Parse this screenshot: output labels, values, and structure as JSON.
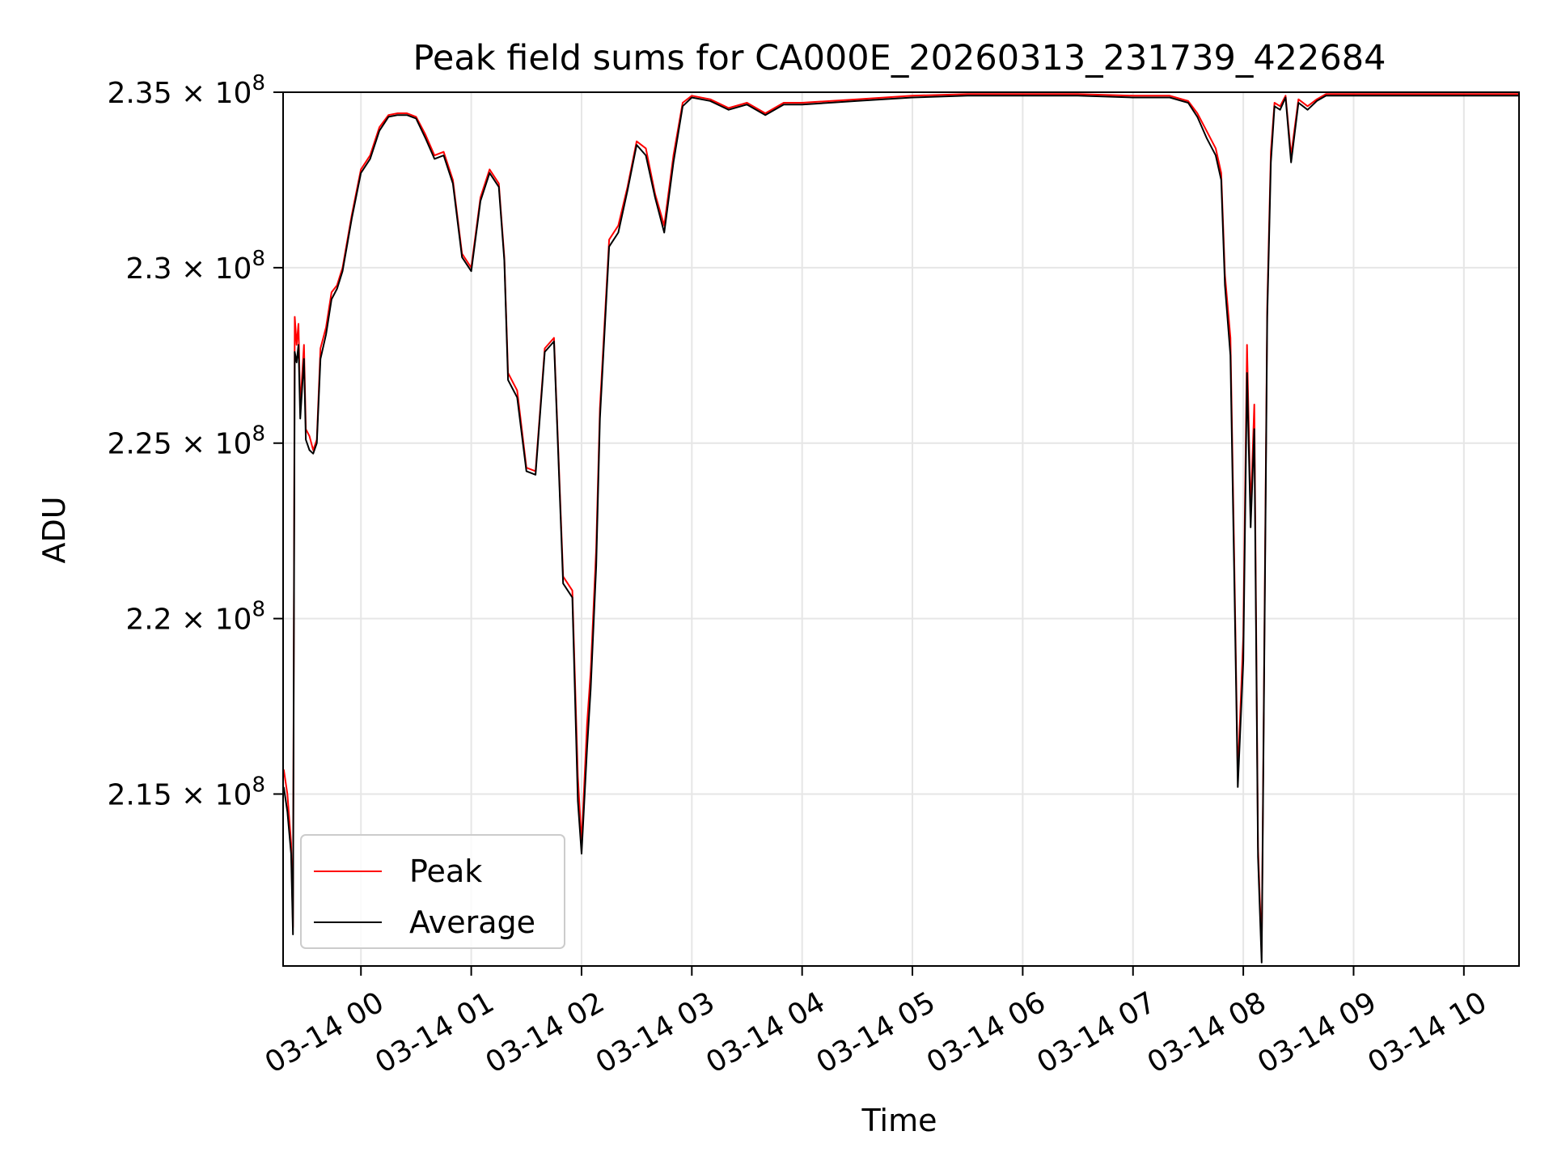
{
  "chart_data": {
    "type": "line",
    "title": "Peak field sums for CA000E_20260313_231739_422684",
    "xlabel": "Time",
    "ylabel": "ADU",
    "x_tick_labels": [
      "03-14 00",
      "03-14 01",
      "03-14 02",
      "03-14 03",
      "03-14 04",
      "03-14 05",
      "03-14 06",
      "03-14 07",
      "03-14 08",
      "03-14 09",
      "03-14 10"
    ],
    "y_tick_labels": [
      {
        "value": 215000000,
        "mantissa": "2.15",
        "exp": "8"
      },
      {
        "value": 220000000,
        "mantissa": "2.2",
        "exp": "8"
      },
      {
        "value": 225000000,
        "mantissa": "2.25",
        "exp": "8"
      },
      {
        "value": 230000000,
        "mantissa": "2.3",
        "exp": "8"
      },
      {
        "value": 235000000,
        "mantissa": "2.35",
        "exp": "8"
      }
    ],
    "xlim": [
      "03-13 23:17:39",
      "03-14 10:30"
    ],
    "ylim": [
      210100000,
      235000000
    ],
    "grid": true,
    "legend_position": "lower-left",
    "series": [
      {
        "name": "Peak",
        "color": "#ff0000",
        "x": [
          "03-13 23:18",
          "03-13 23:20",
          "03-13 23:22",
          "03-13 23:23",
          "03-13 23:24",
          "03-13 23:25",
          "03-13 23:26",
          "03-13 23:27",
          "03-13 23:29",
          "03-13 23:30",
          "03-13 23:32",
          "03-13 23:34",
          "03-13 23:36",
          "03-13 23:38",
          "03-13 23:41",
          "03-13 23:44",
          "03-13 23:47",
          "03-13 23:50",
          "03-13 23:55",
          "03-14 00:00",
          "03-14 00:05",
          "03-14 00:10",
          "03-14 00:15",
          "03-14 00:20",
          "03-14 00:25",
          "03-14 00:30",
          "03-14 00:35",
          "03-14 00:40",
          "03-14 00:45",
          "03-14 00:50",
          "03-14 00:55",
          "03-14 01:00",
          "03-14 01:05",
          "03-14 01:10",
          "03-14 01:15",
          "03-14 01:18",
          "03-14 01:20",
          "03-14 01:25",
          "03-14 01:30",
          "03-14 01:35",
          "03-14 01:40",
          "03-14 01:45",
          "03-14 01:50",
          "03-14 01:55",
          "03-14 01:58",
          "03-14 02:00",
          "03-14 02:03",
          "03-14 02:05",
          "03-14 02:08",
          "03-14 02:10",
          "03-14 02:15",
          "03-14 02:20",
          "03-14 02:25",
          "03-14 02:30",
          "03-14 02:35",
          "03-14 02:40",
          "03-14 02:45",
          "03-14 02:50",
          "03-14 02:55",
          "03-14 03:00",
          "03-14 03:10",
          "03-14 03:20",
          "03-14 03:30",
          "03-14 03:40",
          "03-14 03:50",
          "03-14 04:00",
          "03-14 04:30",
          "03-14 05:00",
          "03-14 05:30",
          "03-14 06:00",
          "03-14 06:30",
          "03-14 07:00",
          "03-14 07:20",
          "03-14 07:30",
          "03-14 07:35",
          "03-14 07:40",
          "03-14 07:45",
          "03-14 07:48",
          "03-14 07:50",
          "03-14 07:53",
          "03-14 07:55",
          "03-14 07:57",
          "03-14 08:00",
          "03-14 08:02",
          "03-14 08:04",
          "03-14 08:06",
          "03-14 08:08",
          "03-14 08:10",
          "03-14 08:12",
          "03-14 08:13",
          "03-14 08:15",
          "03-14 08:17",
          "03-14 08:20",
          "03-14 08:23",
          "03-14 08:26",
          "03-14 08:30",
          "03-14 08:35",
          "03-14 08:40",
          "03-14 08:45",
          "03-14 09:00",
          "03-14 09:30",
          "03-14 10:00",
          "03-14 10:30"
        ],
        "values": [
          215700000,
          215000000,
          213600000,
          211200000,
          228600000,
          227800000,
          228400000,
          226000000,
          227800000,
          225400000,
          225200000,
          224800000,
          225100000,
          227700000,
          228300000,
          229300000,
          229500000,
          230000000,
          231500000,
          232800000,
          233200000,
          234000000,
          234350000,
          234400000,
          234400000,
          234300000,
          233800000,
          233200000,
          233300000,
          232500000,
          230400000,
          230000000,
          232000000,
          232800000,
          232400000,
          230300000,
          227000000,
          226500000,
          224300000,
          224200000,
          227700000,
          228000000,
          221200000,
          220800000,
          215500000,
          213600000,
          217000000,
          218500000,
          222000000,
          226000000,
          230800000,
          231200000,
          232300000,
          233600000,
          233400000,
          232100000,
          231200000,
          233200000,
          234700000,
          234900000,
          234800000,
          234550000,
          234700000,
          234400000,
          234700000,
          234700000,
          234800000,
          234900000,
          234950000,
          234950000,
          234950000,
          234900000,
          234900000,
          234750000,
          234400000,
          233900000,
          233400000,
          232700000,
          229800000,
          228000000,
          222000000,
          215500000,
          219500000,
          227800000,
          223000000,
          226100000,
          213500000,
          210500000,
          222800000,
          228900000,
          233300000,
          234700000,
          234600000,
          234900000,
          233200000,
          234800000,
          234600000,
          234800000,
          234950000,
          234950000,
          234950000,
          234950000,
          234950000
        ]
      },
      {
        "name": "Average",
        "color": "#000000",
        "x": [
          "03-13 23:18",
          "03-13 23:20",
          "03-13 23:22",
          "03-13 23:23",
          "03-13 23:24",
          "03-13 23:25",
          "03-13 23:26",
          "03-13 23:27",
          "03-13 23:29",
          "03-13 23:30",
          "03-13 23:32",
          "03-13 23:34",
          "03-13 23:36",
          "03-13 23:38",
          "03-13 23:41",
          "03-13 23:44",
          "03-13 23:47",
          "03-13 23:50",
          "03-13 23:55",
          "03-14 00:00",
          "03-14 00:05",
          "03-14 00:10",
          "03-14 00:15",
          "03-14 00:20",
          "03-14 00:25",
          "03-14 00:30",
          "03-14 00:35",
          "03-14 00:40",
          "03-14 00:45",
          "03-14 00:50",
          "03-14 00:55",
          "03-14 01:00",
          "03-14 01:05",
          "03-14 01:10",
          "03-14 01:15",
          "03-14 01:18",
          "03-14 01:20",
          "03-14 01:25",
          "03-14 01:30",
          "03-14 01:35",
          "03-14 01:40",
          "03-14 01:45",
          "03-14 01:50",
          "03-14 01:55",
          "03-14 01:58",
          "03-14 02:00",
          "03-14 02:03",
          "03-14 02:05",
          "03-14 02:08",
          "03-14 02:10",
          "03-14 02:15",
          "03-14 02:20",
          "03-14 02:25",
          "03-14 02:30",
          "03-14 02:35",
          "03-14 02:40",
          "03-14 02:45",
          "03-14 02:50",
          "03-14 02:55",
          "03-14 03:00",
          "03-14 03:10",
          "03-14 03:20",
          "03-14 03:30",
          "03-14 03:40",
          "03-14 03:50",
          "03-14 04:00",
          "03-14 04:30",
          "03-14 05:00",
          "03-14 05:30",
          "03-14 06:00",
          "03-14 06:30",
          "03-14 07:00",
          "03-14 07:20",
          "03-14 07:30",
          "03-14 07:35",
          "03-14 07:40",
          "03-14 07:45",
          "03-14 07:48",
          "03-14 07:50",
          "03-14 07:53",
          "03-14 07:55",
          "03-14 07:57",
          "03-14 08:00",
          "03-14 08:02",
          "03-14 08:04",
          "03-14 08:06",
          "03-14 08:08",
          "03-14 08:10",
          "03-14 08:12",
          "03-14 08:13",
          "03-14 08:15",
          "03-14 08:17",
          "03-14 08:20",
          "03-14 08:23",
          "03-14 08:26",
          "03-14 08:30",
          "03-14 08:35",
          "03-14 08:40",
          "03-14 08:45",
          "03-14 09:00",
          "03-14 09:30",
          "03-14 10:00",
          "03-14 10:30"
        ],
        "values": [
          215200000,
          214500000,
          213300000,
          211000000,
          227600000,
          227300000,
          227800000,
          225700000,
          227400000,
          225100000,
          224800000,
          224700000,
          225000000,
          227400000,
          228100000,
          229100000,
          229400000,
          229900000,
          231400000,
          232700000,
          233100000,
          233900000,
          234300000,
          234350000,
          234350000,
          234250000,
          233700000,
          233100000,
          233200000,
          232400000,
          230300000,
          229900000,
          231900000,
          232700000,
          232300000,
          230200000,
          226800000,
          226300000,
          224200000,
          224100000,
          227600000,
          227900000,
          221000000,
          220600000,
          214800000,
          213300000,
          216300000,
          218000000,
          221500000,
          225700000,
          230600000,
          231000000,
          232200000,
          233500000,
          233200000,
          232000000,
          231000000,
          233000000,
          234600000,
          234850000,
          234750000,
          234500000,
          234650000,
          234350000,
          234650000,
          234650000,
          234750000,
          234850000,
          234900000,
          234900000,
          234900000,
          234850000,
          234850000,
          234700000,
          234300000,
          233700000,
          233200000,
          232500000,
          229500000,
          227500000,
          221500000,
          215200000,
          218800000,
          227000000,
          222600000,
          225400000,
          213200000,
          210200000,
          222400000,
          228600000,
          233000000,
          234600000,
          234500000,
          234850000,
          233000000,
          234700000,
          234500000,
          234750000,
          234900000,
          234900000,
          234900000,
          234900000,
          234900000
        ]
      }
    ]
  }
}
